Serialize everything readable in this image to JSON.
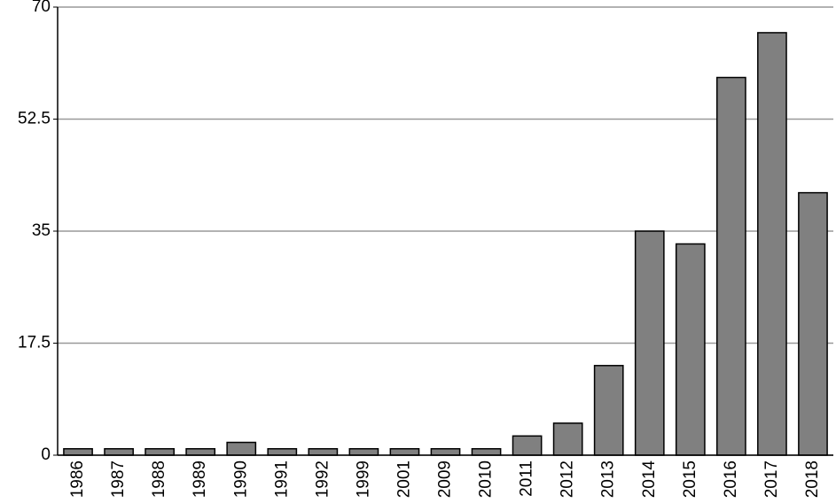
{
  "chart_data": {
    "type": "bar",
    "categories": [
      "1986",
      "1987",
      "1988",
      "1989",
      "1990",
      "1991",
      "1992",
      "1999",
      "2001",
      "2009",
      "2010",
      "2011",
      "2012",
      "2013",
      "2014",
      "2015",
      "2016",
      "2017",
      "2018"
    ],
    "values": [
      1,
      1,
      1,
      1,
      2,
      1,
      1,
      1,
      1,
      1,
      1,
      3,
      5,
      14,
      35,
      33,
      59,
      66,
      41
    ],
    "color": "#808080",
    "ylim": [
      0,
      70
    ],
    "yticks": [
      0,
      17.5,
      35,
      52.5,
      70
    ],
    "grid": true
  }
}
